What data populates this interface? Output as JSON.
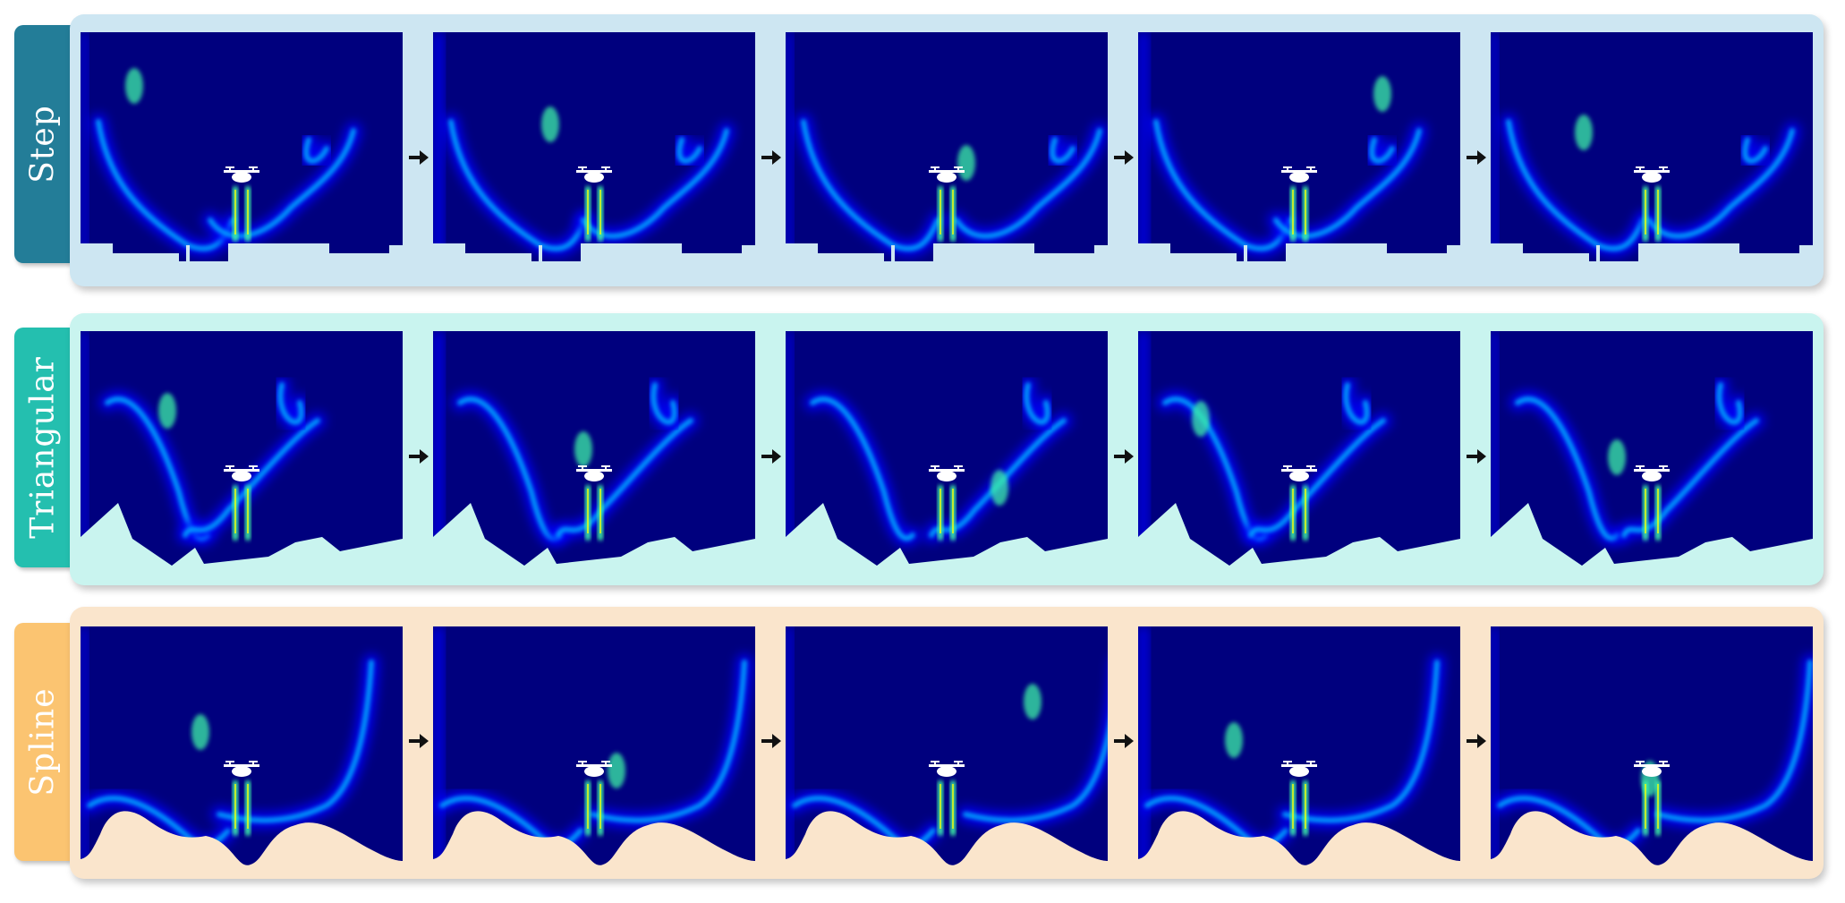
{
  "rows": [
    {
      "label": "Step",
      "tab_color": "#237d98",
      "panel_color": "#cde6f2",
      "terrain_fill": "#cde6f2"
    },
    {
      "label": "Triangular",
      "tab_color": "#24bfaf",
      "panel_color": "#c9f4ef",
      "terrain_fill": "#c9f4ef"
    },
    {
      "label": "Spline",
      "tab_color": "#fbc471",
      "panel_color": "#fae5cc",
      "terrain_fill": "#fae5cc"
    }
  ],
  "frames_per_row": 5,
  "colormap": [
    "#00007e",
    "#0000ff",
    "#00b4ff",
    "#3cf2a6",
    "#ffff00"
  ],
  "icons": {
    "drone": "drone-icon",
    "arrow": "arrow-right-icon"
  }
}
